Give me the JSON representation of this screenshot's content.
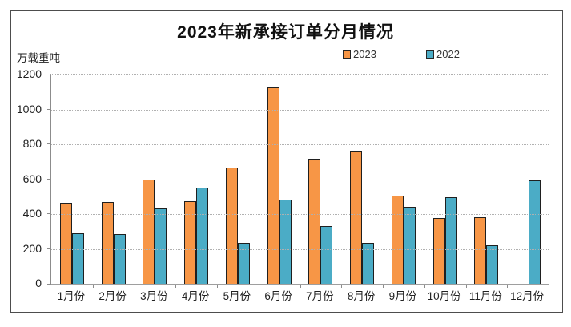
{
  "chart": {
    "title": "2023年新承接订单分月情况",
    "unit_label": "万载重吨",
    "legend": [
      {
        "label": "2023",
        "color": "#F79646"
      },
      {
        "label": "2022",
        "color": "#4BACC6"
      }
    ]
  },
  "chart_data": {
    "type": "bar",
    "title": "2023年新承接订单分月情况",
    "xlabel": "",
    "ylabel": "万载重吨",
    "categories": [
      "1月份",
      "2月份",
      "3月份",
      "4月份",
      "5月份",
      "6月份",
      "7月份",
      "8月份",
      "9月份",
      "10月份",
      "11月份",
      "12月份"
    ],
    "series": [
      {
        "name": "2023",
        "color": "#F79646",
        "values": [
          462,
          466,
          593,
          468,
          662,
          1120,
          708,
          755,
          502,
          372,
          376,
          null
        ]
      },
      {
        "name": "2022",
        "color": "#4BACC6",
        "values": [
          283,
          282,
          428,
          548,
          229,
          477,
          327,
          231,
          439,
          494,
          216,
          590
        ]
      }
    ],
    "ylim": [
      0,
      1200
    ],
    "y_ticks": [
      0,
      200,
      400,
      600,
      800,
      1000,
      1200
    ],
    "grid": "horizontal-dotted",
    "legend_position": "top-center",
    "bar_outline_color": "#1f1f1f",
    "gridline_color": "#b0b0b0"
  }
}
